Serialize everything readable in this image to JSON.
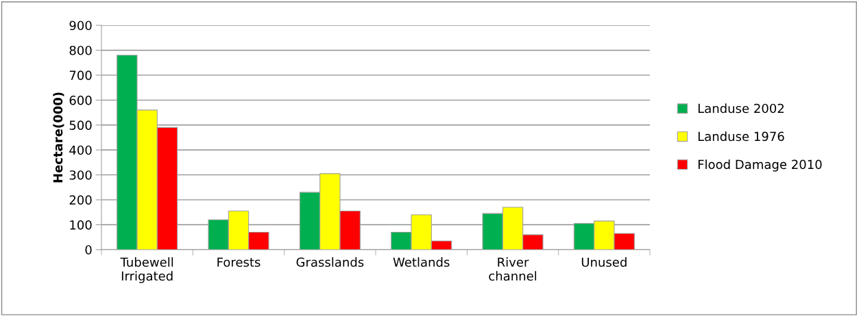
{
  "chart_data": {
    "type": "bar",
    "ylabel": "Hectare(000)",
    "categories": [
      "Tubewell\nIrrigated",
      "Forests",
      "Grasslands",
      "Wetlands",
      "River\nchannel",
      "Unused"
    ],
    "series": [
      {
        "name": "Landuse 2002",
        "color": "#00b050",
        "values": [
          780,
          120,
          230,
          70,
          145,
          105
        ]
      },
      {
        "name": "Landuse 1976",
        "color": "#ffff00",
        "values": [
          560,
          155,
          305,
          140,
          170,
          115
        ]
      },
      {
        "name": "Flood Damage 2010",
        "color": "#ff0000",
        "values": [
          490,
          70,
          155,
          35,
          60,
          65
        ]
      }
    ],
    "ylim": [
      0,
      900
    ],
    "yticks": [
      0,
      100,
      200,
      300,
      400,
      500,
      600,
      700,
      800,
      900
    ],
    "grid": "y",
    "legend": "right"
  }
}
